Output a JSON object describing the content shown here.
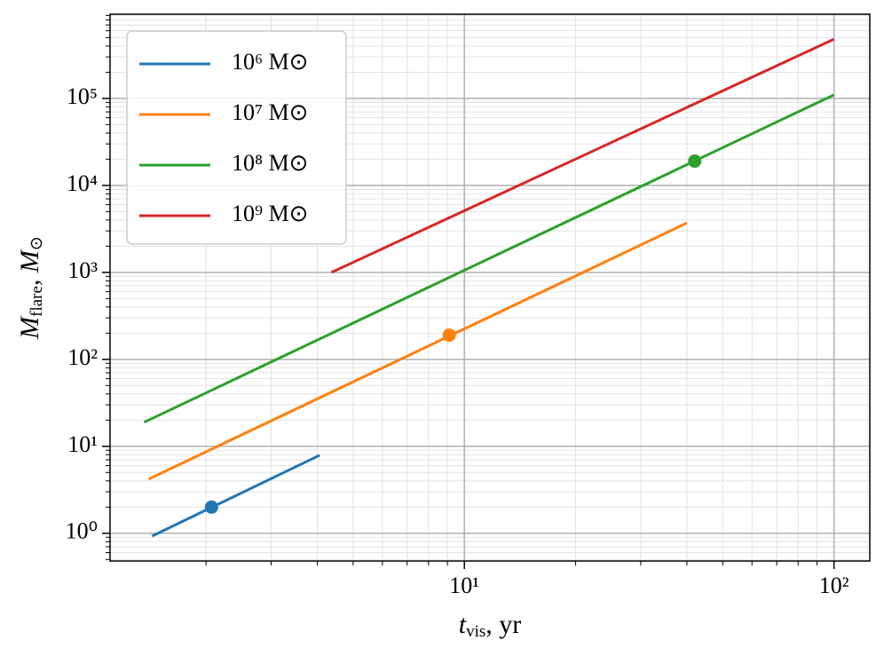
{
  "chart_data": {
    "type": "line",
    "xlabel": [
      "t",
      "vis",
      ", yr"
    ],
    "ylabel": [
      "M",
      "flare",
      ", M",
      "⊙"
    ],
    "xscale": "log",
    "yscale": "log",
    "xlim": [
      1.1,
      125
    ],
    "ylim": [
      0.48,
      930000
    ],
    "xticks": [
      {
        "value": 10,
        "label": "10¹"
      },
      {
        "value": 100,
        "label": "10²"
      }
    ],
    "yticks": [
      {
        "value": 1,
        "label": "10⁰"
      },
      {
        "value": 10,
        "label": "10¹"
      },
      {
        "value": 100,
        "label": "10²"
      },
      {
        "value": 1000,
        "label": "10³"
      },
      {
        "value": 10000,
        "label": "10⁴"
      },
      {
        "value": 100000,
        "label": "10⁵"
      }
    ],
    "grid": true,
    "minor_grid": true,
    "legend": "upper left",
    "series": [
      {
        "name": "10⁶ M⊙",
        "color": "#1f77b4",
        "x": [
          1.43,
          4.06
        ],
        "values": [
          0.93,
          7.9
        ],
        "marker": {
          "x": 2.07,
          "y": 2
        }
      },
      {
        "name": "10⁷ M⊙",
        "color": "#ff7f0e",
        "x": [
          1.4,
          40
        ],
        "values": [
          4.2,
          3700
        ],
        "marker": {
          "x": 9.1,
          "y": 190
        }
      },
      {
        "name": "10⁸ M⊙",
        "color": "#2ca02c",
        "x": [
          1.36,
          100
        ],
        "values": [
          18.9,
          110000
        ],
        "marker": {
          "x": 42,
          "y": 19000
        }
      },
      {
        "name": "10⁹ M⊙",
        "color": "#d62728",
        "x": [
          4.37,
          100
        ],
        "values": [
          1000,
          480000
        ]
      }
    ]
  }
}
